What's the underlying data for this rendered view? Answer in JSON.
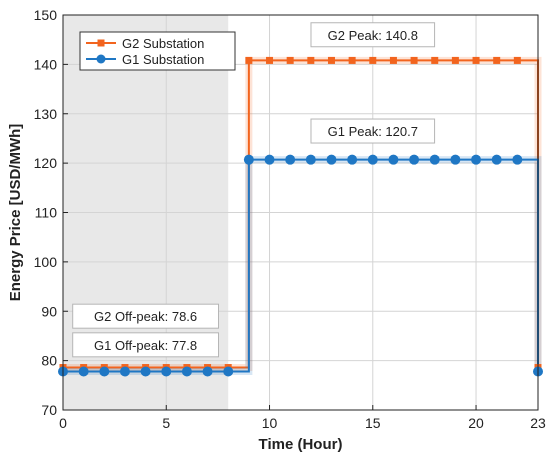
{
  "chart_data": {
    "type": "line",
    "title": "",
    "xlabel": "Time (Hour)",
    "ylabel": "Energy Price [USD/MWh]",
    "xlim": [
      0,
      23
    ],
    "ylim": [
      70,
      150
    ],
    "xticks": [
      0,
      5,
      10,
      15,
      20,
      23
    ],
    "yticks": [
      70,
      80,
      90,
      100,
      110,
      120,
      130,
      140,
      150
    ],
    "grid": true,
    "legend_position": "top-left",
    "shaded_region": {
      "x_start": 0,
      "x_end": 8,
      "color": "#e8e8e8"
    },
    "series": [
      {
        "name": "G2 Substation",
        "color": "#f2641e",
        "marker": "square",
        "x": [
          0,
          1,
          2,
          3,
          4,
          5,
          6,
          7,
          8,
          9,
          10,
          11,
          12,
          13,
          14,
          15,
          16,
          17,
          18,
          19,
          20,
          21,
          22,
          23
        ],
        "y": [
          78.6,
          78.6,
          78.6,
          78.6,
          78.6,
          78.6,
          78.6,
          78.6,
          78.6,
          140.8,
          140.8,
          140.8,
          140.8,
          140.8,
          140.8,
          140.8,
          140.8,
          140.8,
          140.8,
          140.8,
          140.8,
          140.8,
          140.8,
          78.6
        ]
      },
      {
        "name": "G1 Substation",
        "color": "#1f77c4",
        "marker": "circle",
        "x": [
          0,
          1,
          2,
          3,
          4,
          5,
          6,
          7,
          8,
          9,
          10,
          11,
          12,
          13,
          14,
          15,
          16,
          17,
          18,
          19,
          20,
          21,
          22,
          23
        ],
        "y": [
          77.8,
          77.8,
          77.8,
          77.8,
          77.8,
          77.8,
          77.8,
          77.8,
          77.8,
          120.7,
          120.7,
          120.7,
          120.7,
          120.7,
          120.7,
          120.7,
          120.7,
          120.7,
          120.7,
          120.7,
          120.7,
          120.7,
          120.7,
          77.8
        ]
      }
    ],
    "annotations": [
      {
        "text": "G2 Peak: 140.8",
        "x": 15,
        "y": 146
      },
      {
        "text": "G1 Peak: 120.7",
        "x": 15,
        "y": 126.5
      },
      {
        "text": "G2 Off-peak: 78.6",
        "x": 4,
        "y": 89
      },
      {
        "text": "G1 Off-peak: 77.8",
        "x": 4,
        "y": 83.2
      }
    ]
  }
}
